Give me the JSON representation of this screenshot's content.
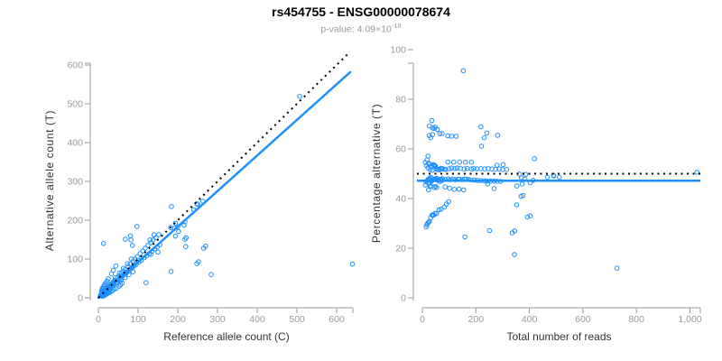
{
  "title": "rs454755 - ENSG00000078674",
  "subtitle": {
    "prefix": "p-value: 4.09×10",
    "exponent": "-18"
  },
  "colors": {
    "point": "#1E90FF",
    "fit_line": "#1E90FF",
    "dotted_line": "#000000",
    "axis": "#999999",
    "tick_text": "#999999",
    "axis_title_text": "#333333",
    "title_text": "#000000",
    "subtitle_text": "#9a9a9a"
  },
  "chart_data": {
    "type": "scatter",
    "title": "rs454755 - ENSG00000078674",
    "subtitle": "p-value: 4.09×10^-18",
    "note": "Two-panel allele-specific expression plot. Shared underlying data: pairs of [reference_count, alternative_count]. Left panel plots alt vs ref; right panel plots x=ref+alt (total reads), y=100*alt/(ref+alt) (percentage alternative).",
    "points_ref_alt": [
      [
        5,
        6
      ],
      [
        6,
        5
      ],
      [
        7,
        8
      ],
      [
        8,
        7
      ],
      [
        8,
        10
      ],
      [
        9,
        8
      ],
      [
        9,
        12
      ],
      [
        10,
        9
      ],
      [
        10,
        11
      ],
      [
        11,
        10
      ],
      [
        11,
        13
      ],
      [
        12,
        11
      ],
      [
        12,
        14
      ],
      [
        13,
        12
      ],
      [
        13,
        10
      ],
      [
        14,
        15
      ],
      [
        14,
        12
      ],
      [
        15,
        14
      ],
      [
        15,
        17
      ],
      [
        16,
        13
      ],
      [
        16,
        18
      ],
      [
        17,
        16
      ],
      [
        17,
        14
      ],
      [
        18,
        19
      ],
      [
        18,
        16
      ],
      [
        19,
        17
      ],
      [
        19,
        22
      ],
      [
        20,
        18
      ],
      [
        20,
        23
      ],
      [
        21,
        19
      ],
      [
        21,
        24
      ],
      [
        22,
        20
      ],
      [
        22,
        25
      ],
      [
        23,
        21
      ],
      [
        23,
        26
      ],
      [
        24,
        22
      ],
      [
        25,
        27
      ],
      [
        25,
        20
      ],
      [
        26,
        24
      ],
      [
        27,
        29
      ],
      [
        27,
        22
      ],
      [
        28,
        26
      ],
      [
        29,
        31
      ],
      [
        30,
        27
      ],
      [
        30,
        24
      ],
      [
        31,
        33
      ],
      [
        32,
        29
      ],
      [
        33,
        36
      ],
      [
        34,
        30
      ],
      [
        35,
        32
      ],
      [
        35,
        38
      ],
      [
        36,
        33
      ],
      [
        37,
        40
      ],
      [
        38,
        34
      ],
      [
        39,
        36
      ],
      [
        40,
        43
      ],
      [
        10,
        4
      ],
      [
        12,
        5
      ],
      [
        14,
        6
      ],
      [
        16,
        7
      ],
      [
        18,
        8
      ],
      [
        21,
        10
      ],
      [
        24,
        12
      ],
      [
        28,
        14
      ],
      [
        9,
        17
      ],
      [
        11,
        20
      ],
      [
        8,
        18
      ],
      [
        13,
        25
      ],
      [
        12,
        26
      ],
      [
        10,
        25
      ],
      [
        14,
        30
      ],
      [
        15,
        33
      ],
      [
        18,
        38
      ],
      [
        22,
        43
      ],
      [
        25,
        49
      ],
      [
        26,
        13
      ],
      [
        31,
        16
      ],
      [
        35,
        18
      ],
      [
        40,
        22
      ],
      [
        33,
        62
      ],
      [
        38,
        71
      ],
      [
        44,
        82
      ],
      [
        45,
        25
      ],
      [
        52,
        30
      ],
      [
        56,
        34
      ],
      [
        60,
        38
      ],
      [
        42,
        45
      ],
      [
        45,
        41
      ],
      [
        48,
        52
      ],
      [
        50,
        46
      ],
      [
        52,
        57
      ],
      [
        55,
        50
      ],
      [
        58,
        63
      ],
      [
        60,
        55
      ],
      [
        62,
        68
      ],
      [
        65,
        59
      ],
      [
        68,
        74
      ],
      [
        70,
        64
      ],
      [
        72,
        66
      ],
      [
        75,
        81
      ],
      [
        78,
        71
      ],
      [
        80,
        87
      ],
      [
        82,
        75
      ],
      [
        85,
        78
      ],
      [
        88,
        95
      ],
      [
        90,
        82
      ],
      [
        43,
        52
      ],
      [
        47,
        38
      ],
      [
        53,
        64
      ],
      [
        57,
        45
      ],
      [
        63,
        76
      ],
      [
        67,
        52
      ],
      [
        73,
        88
      ],
      [
        77,
        60
      ],
      [
        83,
        100
      ],
      [
        87,
        67
      ],
      [
        92,
        100
      ],
      [
        95,
        86
      ],
      [
        98,
        106
      ],
      [
        102,
        92
      ],
      [
        105,
        114
      ],
      [
        108,
        97
      ],
      [
        112,
        121
      ],
      [
        115,
        103
      ],
      [
        118,
        128
      ],
      [
        122,
        109
      ],
      [
        125,
        135
      ],
      [
        128,
        114
      ],
      [
        132,
        142
      ],
      [
        135,
        120
      ],
      [
        138,
        149
      ],
      [
        142,
        126
      ],
      [
        145,
        155
      ],
      [
        148,
        131
      ],
      [
        152,
        163
      ],
      [
        155,
        137
      ],
      [
        13,
        140
      ],
      [
        68,
        151
      ],
      [
        81,
        160
      ],
      [
        82,
        149
      ],
      [
        86,
        135
      ],
      [
        97,
        184
      ],
      [
        120,
        39
      ],
      [
        130,
        149
      ],
      [
        132,
        112
      ],
      [
        140,
        162
      ],
      [
        150,
        118
      ],
      [
        183,
        68
      ],
      [
        182,
        181
      ],
      [
        184,
        235
      ],
      [
        191,
        179
      ],
      [
        194,
        192
      ],
      [
        194,
        159
      ],
      [
        200,
        183
      ],
      [
        202,
        171
      ],
      [
        216,
        187
      ],
      [
        218,
        196
      ],
      [
        218,
        151
      ],
      [
        220,
        132
      ],
      [
        221,
        155
      ],
      [
        240,
        227
      ],
      [
        248,
        242
      ],
      [
        250,
        241
      ],
      [
        263,
        249
      ],
      [
        248,
        88
      ],
      [
        252,
        93
      ],
      [
        265,
        128
      ],
      [
        270,
        133
      ],
      [
        284,
        60
      ],
      [
        507,
        519
      ],
      [
        640,
        87
      ]
    ],
    "left": {
      "xlabel": "Reference allele count (C)",
      "ylabel": "Alternative allele count (T)",
      "xlim": [
        0,
        643
      ],
      "ylim": [
        0,
        640
      ],
      "x_ticks": [
        0,
        100,
        200,
        300,
        400,
        500,
        600
      ],
      "y_ticks": [
        0,
        100,
        200,
        300,
        400,
        500,
        600
      ],
      "identity_line": {
        "style": "dotted",
        "color": "#000000",
        "slope": 1,
        "intercept": 0
      },
      "fit_line": {
        "style": "solid",
        "color": "#1E90FF",
        "slope": 0.917,
        "intercept": 0
      }
    },
    "right": {
      "xlabel": "Total number of reads",
      "ylabel": "Percentage alternative (T)",
      "xlim": [
        0,
        1045
      ],
      "ylim": [
        0,
        100
      ],
      "x_ticks": [
        0,
        200,
        400,
        600,
        800,
        1000
      ],
      "x_tick_labels": [
        "0",
        "200",
        "400",
        "600",
        "800",
        "1,000"
      ],
      "y_ticks": [
        0,
        20,
        40,
        60,
        80,
        100
      ],
      "expected_line": {
        "style": "dotted",
        "color": "#000000",
        "y": 50
      },
      "fit_line": {
        "style": "solid",
        "color": "#1E90FF",
        "y": 47.2
      },
      "derived": "x = ref+alt, y = 100*alt/(ref+alt) from points_ref_alt"
    },
    "grid": false,
    "legend": false
  }
}
